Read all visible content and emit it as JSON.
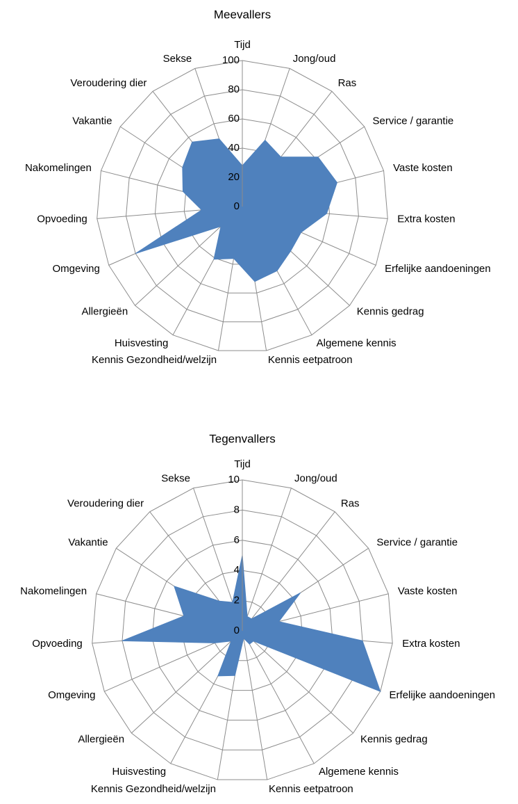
{
  "chart_data": [
    {
      "type": "radar",
      "title": "Meevallers",
      "categories": [
        "Tijd",
        "Jong/oud",
        "Ras",
        "Service / garantie",
        "Vaste kosten",
        "Extra kosten",
        "Erfelijke aandoeningen",
        "Kennis gedrag",
        "Algemene kennis",
        "Kennis eetpatroon",
        "Kennis Gezondheid/welzijn",
        "Huisvesting",
        "Allergieën",
        "Omgeving",
        "Opvoeding",
        "Nakomelingen",
        "Vakantie",
        "Veroudering dier",
        "Sekse"
      ],
      "values": [
        28,
        48,
        43,
        62,
        67,
        58,
        44,
        45,
        50,
        52,
        36,
        41,
        20,
        80,
        28,
        42,
        49,
        56,
        49
      ],
      "color": "#4f81bd",
      "ylim": [
        0,
        100
      ],
      "yticks": [
        0,
        20,
        40,
        60,
        80,
        100
      ],
      "grid": true
    },
    {
      "type": "radar",
      "title": "Tegenvallers",
      "categories": [
        "Tijd",
        "Jong/oud",
        "Ras",
        "Service / garantie",
        "Vaste kosten",
        "Extra kosten",
        "Erfelijke aandoeningen",
        "Kennis gedrag",
        "Algemene kennis",
        "Kennis eetpatroon",
        "Kennis Gezondheid/welzijn",
        "Huisvesting",
        "Allergieën",
        "Omgeving",
        "Opvoeding",
        "Nakomelingen",
        "Vakantie",
        "Veroudering dier",
        "Sekse"
      ],
      "values": [
        5,
        1,
        1,
        4.6,
        2.5,
        8,
        10,
        1,
        1,
        0.5,
        3,
        3.4,
        1,
        2,
        8,
        4,
        5.4,
        2.5,
        2
      ],
      "color": "#4f81bd",
      "ylim": [
        0,
        10
      ],
      "yticks": [
        0,
        2,
        4,
        6,
        8,
        10
      ],
      "grid": true
    }
  ]
}
